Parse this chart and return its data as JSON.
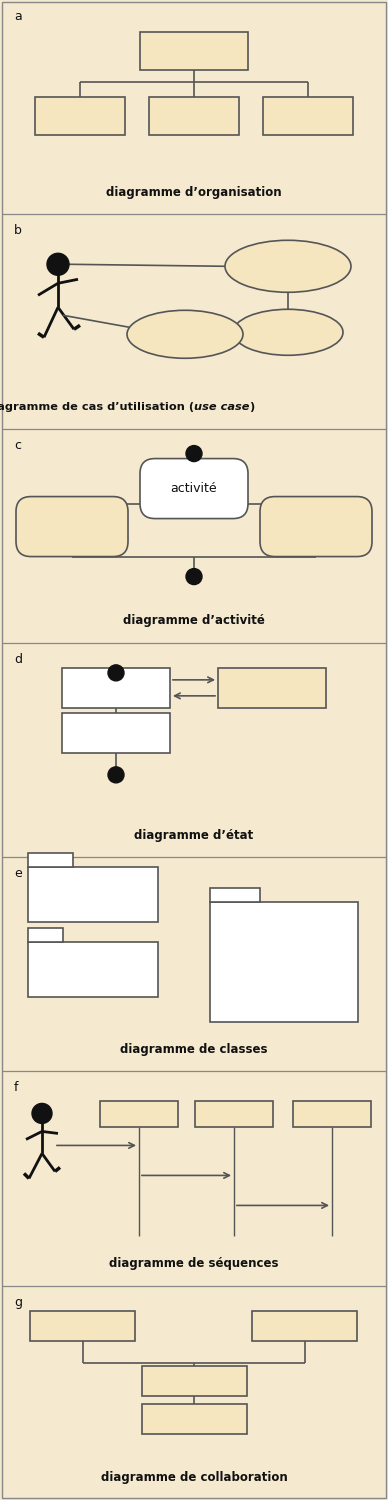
{
  "bg_color": "#f5ead0",
  "border_color": "#555555",
  "box_fill": "#f5e6c0",
  "white_fill": "#ffffff",
  "text_color": "#111111",
  "section_letters": [
    "a",
    "b",
    "c",
    "d",
    "e",
    "f",
    "g"
  ],
  "section_labels": [
    "diagramme d’organisation",
    "diagramme de cas d’utilisation (",
    "use case",
    ")",
    "diagramme d’activité",
    "diagramme d’état",
    "diagramme de classes",
    "diagramme de séquences",
    "diagramme de collaboration"
  ]
}
